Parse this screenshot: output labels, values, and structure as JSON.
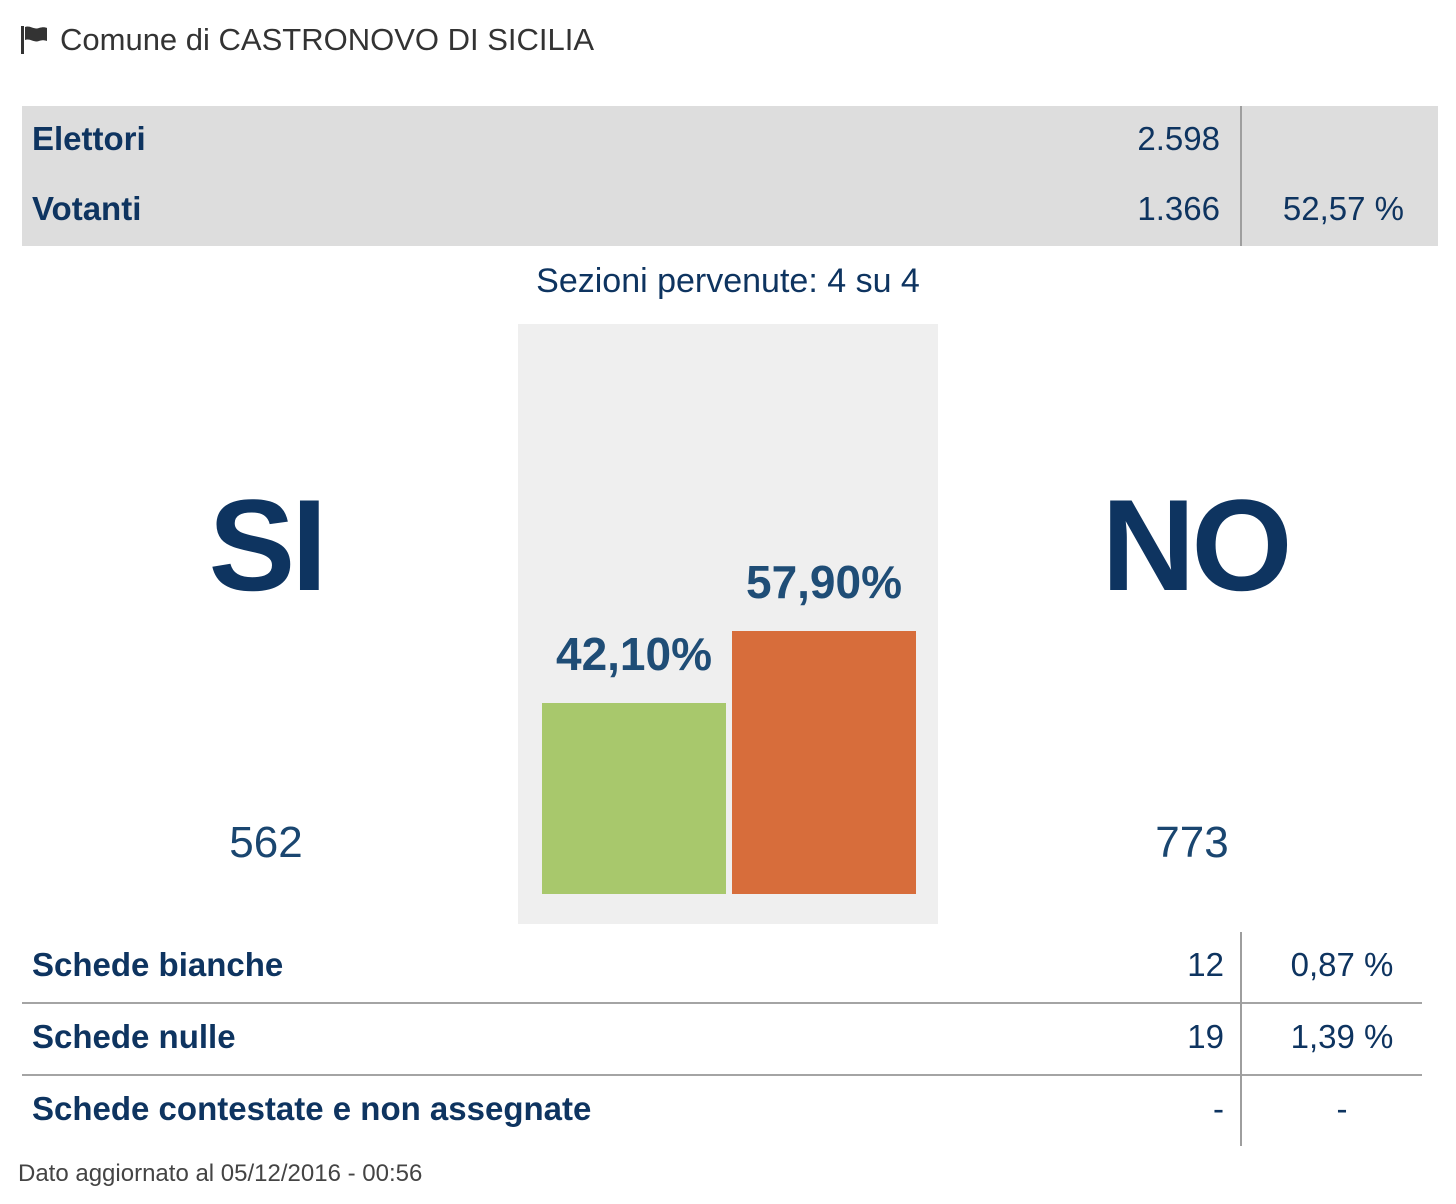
{
  "header": {
    "title": "Comune di CASTRONOVO DI SICILIA",
    "icon": "flag-icon"
  },
  "stats": {
    "elettori": {
      "label": "Elettori",
      "value": "2.598"
    },
    "votanti": {
      "label": "Votanti",
      "value": "1.366",
      "pct": "52,57 %"
    }
  },
  "sezioni": "Sezioni pervenute: 4 su 4",
  "results": {
    "si": {
      "label": "SI",
      "count": "562",
      "pct_label": "42,10%",
      "pct": 42.1,
      "color": "#a8c86c"
    },
    "no": {
      "label": "NO",
      "count": "773",
      "pct_label": "57,90%",
      "pct": 57.9,
      "color": "#d76d3b"
    }
  },
  "chart_data": {
    "type": "bar",
    "categories": [
      "SI",
      "NO"
    ],
    "values": [
      42.1,
      57.9
    ],
    "ylim": [
      0,
      100
    ]
  },
  "schede": [
    {
      "label": "Schede bianche",
      "value": "12",
      "pct": "0,87 %"
    },
    {
      "label": "Schede nulle",
      "value": "19",
      "pct": "1,39 %"
    },
    {
      "label": "Schede contestate e non assegnate",
      "value": "-",
      "pct": "-"
    }
  ],
  "footer": "Dato aggiornato al 05/12/2016 - 00:56"
}
